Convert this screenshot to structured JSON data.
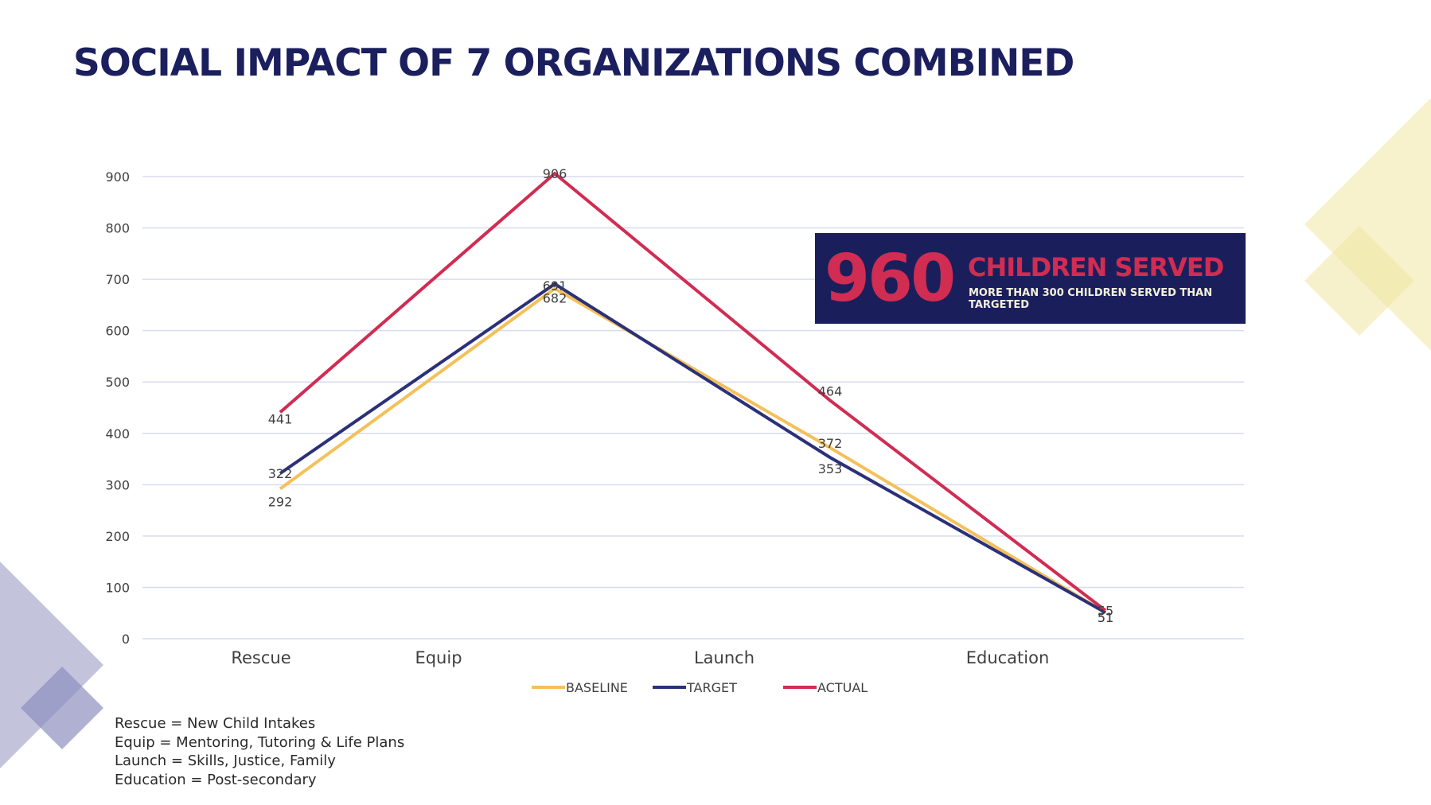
{
  "slide": {
    "title": "SOCIAL IMPACT OF 7 ORGANIZATIONS COMBINED"
  },
  "callout": {
    "number": "960",
    "headline": "CHILDREN SERVED",
    "subtext": "MORE THAN 300 CHILDREN SERVED THAN TARGETED"
  },
  "notes": [
    "Rescue = New Child Intakes",
    "Equip = Mentoring, Tutoring & Life Plans",
    "Launch = Skills, Justice, Family",
    "Education = Post-secondary"
  ],
  "colors": {
    "title": "#1b1f5e",
    "baseline": "#f5c05a",
    "target": "#2b3178",
    "actual": "#d12c52",
    "gridline": "#d9dbf0",
    "callout_bg": "#1a1f5c",
    "deco_left": "#b8b9d6",
    "deco_right": "#f6f1c6"
  },
  "chart_data": {
    "type": "line",
    "title": "",
    "xlabel": "",
    "ylabel": "",
    "categories": [
      "Rescue",
      "Equip",
      "Launch",
      "Education"
    ],
    "ylim": [
      0,
      900
    ],
    "yticks": [
      0,
      100,
      200,
      300,
      400,
      500,
      600,
      700,
      800,
      900
    ],
    "grid": true,
    "legend_position": "bottom",
    "series": [
      {
        "name": "BASELINE",
        "color": "#f5c05a",
        "values": [
          292,
          682,
          372,
          51
        ]
      },
      {
        "name": "TARGET",
        "color": "#2b3178",
        "values": [
          322,
          691,
          353,
          51
        ]
      },
      {
        "name": "ACTUAL",
        "color": "#d12c52",
        "values": [
          441,
          906,
          464,
          55
        ]
      }
    ]
  }
}
